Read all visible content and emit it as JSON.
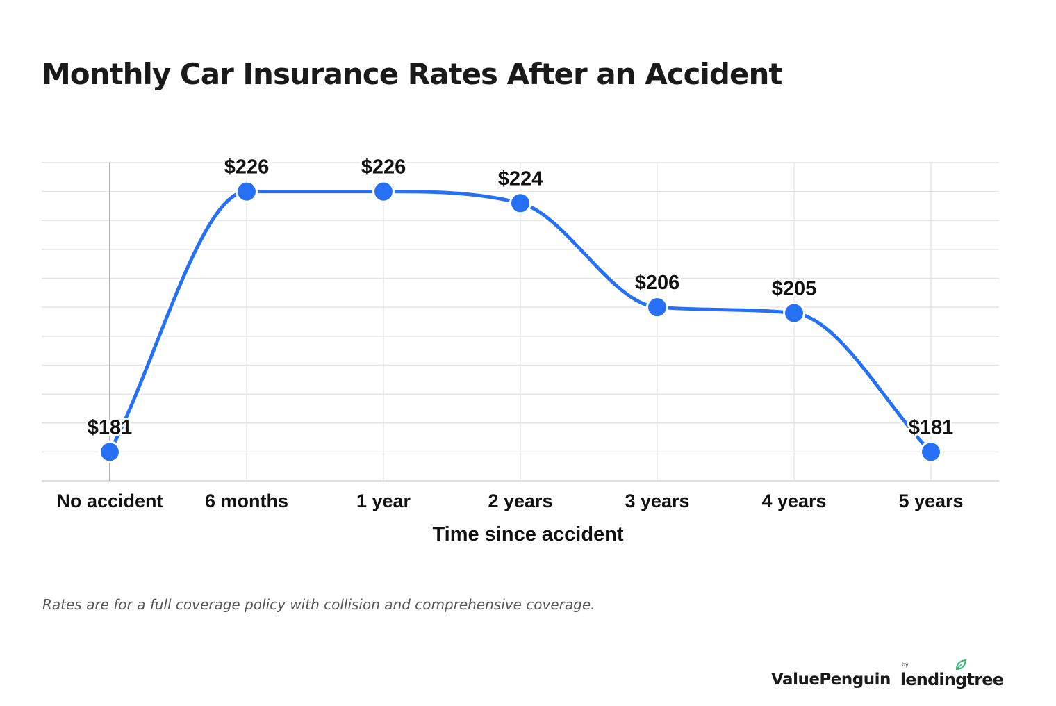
{
  "chart_data": {
    "type": "line",
    "title": "Monthly Car Insurance Rates After an Accident",
    "xlabel": "Time since accident",
    "ylabel": "",
    "categories": [
      "No accident",
      "6 months",
      "1 year",
      "2 years",
      "3 years",
      "4 years",
      "5 years"
    ],
    "series": [
      {
        "values": [
          181,
          226,
          226,
          224,
          206,
          205,
          181
        ],
        "labels": [
          "$181",
          "$226",
          "$226",
          "$224",
          "$206",
          "$205",
          "$181"
        ],
        "color": "#2670f5"
      }
    ],
    "ylim": [
      175,
      230
    ],
    "grid": true,
    "legend": "none"
  },
  "footnote": "Rates are for a full coverage policy with collision and comprehensive coverage.",
  "branding": {
    "logo_icon": "penguin-icon",
    "name": "ValuePenguin",
    "by": "by",
    "partner": "lendingtree",
    "partner_icon": "leaf-icon",
    "partner_color": "#2bb673"
  }
}
